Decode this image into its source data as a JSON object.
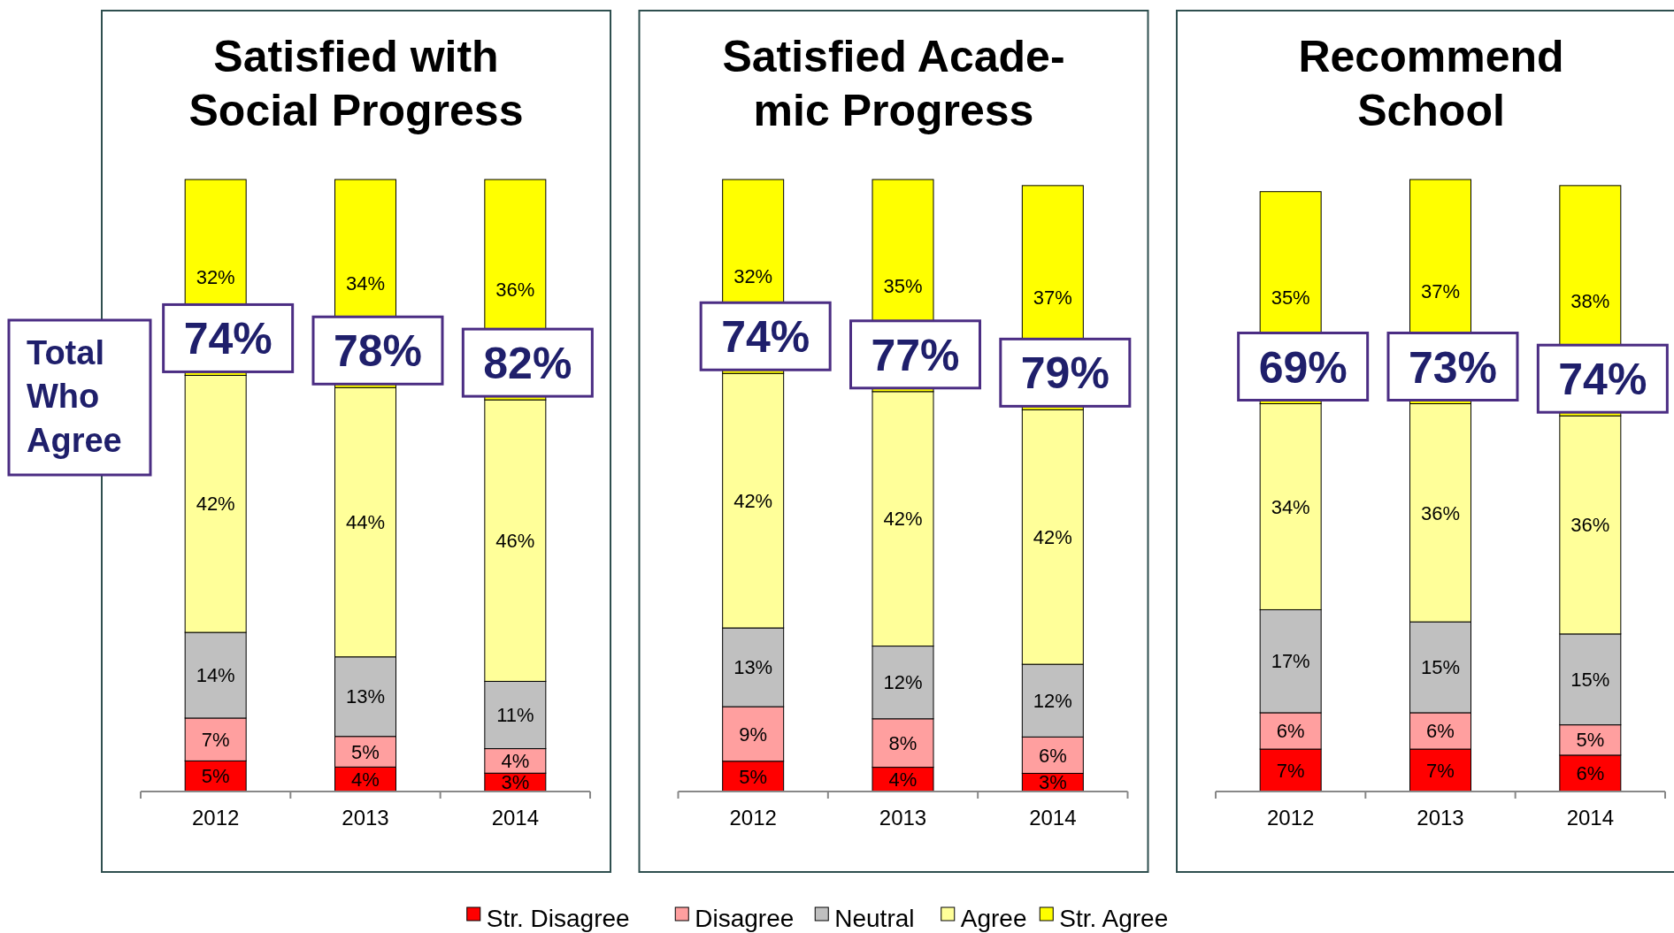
{
  "chart_data": [
    {
      "type": "bar",
      "stacked": true,
      "title": "Satisfied with\nSocial Progress",
      "categories": [
        "2012",
        "2013",
        "2014"
      ],
      "legend": "bottom",
      "series": [
        {
          "name": "Str. Disagree",
          "color": "#ff0000",
          "values": [
            5,
            4,
            3
          ],
          "value_labels": [
            "5%",
            "4%",
            "3%"
          ]
        },
        {
          "name": "Disagree",
          "color": "#ff9f9f",
          "values": [
            7,
            5,
            4
          ],
          "value_labels": [
            "7%",
            "5%",
            "4%"
          ]
        },
        {
          "name": "Neutral",
          "color": "#c0c0c0",
          "values": [
            14,
            13,
            11
          ],
          "value_labels": [
            "14%",
            "13%",
            "11%"
          ]
        },
        {
          "name": "Agree",
          "color": "#ffff99",
          "values": [
            42,
            44,
            46
          ],
          "value_labels": [
            "42%",
            "44%",
            "46%"
          ]
        },
        {
          "name": "Str. Agree",
          "color": "#ffff00",
          "values": [
            32,
            34,
            36
          ],
          "value_labels": [
            "32%",
            "34%",
            "36%"
          ]
        }
      ],
      "annotations": [
        "Total Who Agree",
        {
          "text": "74%",
          "x": "2012",
          "y": 68
        },
        {
          "text": "78%",
          "x": "2013",
          "y": 66
        },
        {
          "text": "82%",
          "x": "2014",
          "y": 64
        }
      ]
    },
    {
      "type": "bar",
      "stacked": true,
      "title": "Satisfied Acade-\nmic Progress",
      "categories": [
        "2012",
        "2013",
        "2014"
      ],
      "series": [
        {
          "color": "#ff0000",
          "values": [
            5,
            4,
            3
          ],
          "value_labels": [
            "5%",
            "4%",
            "3%"
          ]
        },
        {
          "color": "#ff9f9f",
          "values": [
            9,
            8,
            6
          ],
          "value_labels": [
            "9%",
            "8%",
            "6%"
          ]
        },
        {
          "color": "#c0c0c0",
          "values": [
            13,
            12,
            12
          ],
          "value_labels": [
            "13%",
            "12%",
            "12%"
          ]
        },
        {
          "color": "#ffff99",
          "values": [
            42,
            42,
            42
          ],
          "value_labels": [
            "42%",
            "42%",
            "42%"
          ]
        },
        {
          "color": "#ffff00",
          "values": [
            32,
            35,
            37
          ],
          "value_labels": [
            "32%",
            "35%",
            "37%"
          ]
        }
      ],
      "annotations": [
        {
          "text": "74%",
          "x": "2012",
          "y": 69
        },
        {
          "text": "77%",
          "x": "2013",
          "y": 66
        },
        {
          "text": "79%",
          "x": "2014",
          "y": 63
        }
      ]
    },
    {
      "type": "bar",
      "stacked": true,
      "title": "Recommend\nSchool",
      "categories": [
        "2012",
        "2013",
        "2014"
      ],
      "series": [
        {
          "color": "#ff0000",
          "values": [
            7,
            7,
            6
          ],
          "value_labels": [
            "7%",
            "7%",
            "6%"
          ]
        },
        {
          "color": "#ff9f9f",
          "values": [
            6,
            6,
            5
          ],
          "value_labels": [
            "6%",
            "6%",
            "5%"
          ]
        },
        {
          "color": "#c0c0c0",
          "values": [
            17,
            15,
            15
          ],
          "value_labels": [
            "17%",
            "15%",
            "15%"
          ]
        },
        {
          "color": "#ffff99",
          "values": [
            34,
            36,
            36
          ],
          "value_labels": [
            "34%",
            "36%",
            "36%"
          ]
        },
        {
          "color": "#ffff00",
          "values": [
            35,
            37,
            38
          ],
          "value_labels": [
            "35%",
            "37%",
            "38%"
          ]
        }
      ],
      "annotations": [
        {
          "text": "69%",
          "x": "2012",
          "y": 64
        },
        {
          "text": "73%",
          "x": "2013",
          "y": 64
        },
        {
          "text": "74%",
          "x": "2014",
          "y": 62
        }
      ]
    }
  ]
}
